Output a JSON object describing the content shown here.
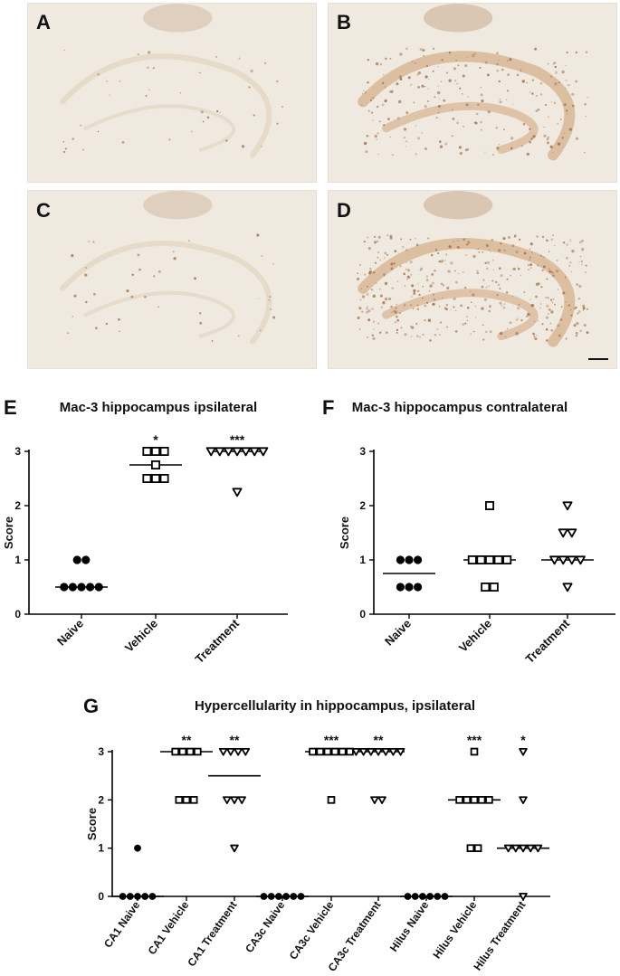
{
  "panel_labels": {
    "A": "A",
    "B": "B",
    "C": "C",
    "D": "D",
    "E": "E",
    "F": "F",
    "G": "G"
  },
  "micrographs": [
    {
      "id": "A",
      "staining": "light"
    },
    {
      "id": "B",
      "staining": "moderate"
    },
    {
      "id": "C",
      "staining": "light"
    },
    {
      "id": "D",
      "staining": "strong"
    }
  ],
  "colors": {
    "tissue_bg": "#efe9df",
    "stain": "#a06a42",
    "layer": "#e4d8c6",
    "axis": "#000000"
  },
  "chart_data": [
    {
      "id": "E",
      "type": "scatter",
      "title": "Mac-3 hippocampus ipsilateral",
      "ylabel": "Score",
      "ylim": [
        0,
        3
      ],
      "yticks": [
        "0",
        "1",
        "2",
        "3"
      ],
      "categories": [
        "Naive",
        "Vehicle",
        "Treatment"
      ],
      "markers": [
        "circle",
        "square",
        "triangle-down"
      ],
      "groups": [
        {
          "category": "Naive",
          "values": [
            0.5,
            0.5,
            0.5,
            0.5,
            0.5,
            1,
            1
          ],
          "median": 0.5,
          "significance": ""
        },
        {
          "category": "Vehicle",
          "values": [
            3,
            3,
            3,
            2.75,
            2.5,
            2.5,
            2.5
          ],
          "median": 2.75,
          "significance": "*"
        },
        {
          "category": "Treatment",
          "values": [
            3,
            3,
            3,
            3,
            3,
            3,
            3,
            2.25
          ],
          "median": 3,
          "significance": "***"
        }
      ]
    },
    {
      "id": "F",
      "type": "scatter",
      "title": "Mac-3 hippocampus contralateral",
      "ylabel": "Score",
      "ylim": [
        0,
        3
      ],
      "yticks": [
        "0",
        "1",
        "2",
        "3"
      ],
      "categories": [
        "Naive",
        "Vehicle",
        "Treatment"
      ],
      "markers": [
        "circle",
        "square",
        "triangle-down"
      ],
      "groups": [
        {
          "category": "Naive",
          "values": [
            1,
            1,
            1,
            0.5,
            0.5,
            0.5
          ],
          "median": 0.75,
          "significance": ""
        },
        {
          "category": "Vehicle",
          "values": [
            2,
            1,
            1,
            1,
            1,
            1,
            0.5,
            0.5
          ],
          "median": 1,
          "significance": ""
        },
        {
          "category": "Treatment",
          "values": [
            2,
            1.5,
            1.5,
            1,
            1,
            1,
            1,
            0.5
          ],
          "median": 1,
          "significance": ""
        }
      ]
    },
    {
      "id": "G",
      "type": "scatter",
      "title": "Hypercellularity in hippocampus, ipsilateral",
      "ylabel": "Score",
      "ylim": [
        0,
        3
      ],
      "yticks": [
        "0",
        "1",
        "2",
        "3"
      ],
      "categories": [
        "CA1 Naive",
        "CA1 Vehicle",
        "CA1 Treatment",
        "CA3c Naive",
        "CA3c Vehicle",
        "CA3c Treatment",
        "Hilus Naive",
        "Hilus Vehicle",
        "Hilus Treatment"
      ],
      "markers": [
        "circle",
        "square",
        "triangle-down",
        "circle",
        "square",
        "triangle-down",
        "circle",
        "square",
        "triangle-down"
      ],
      "groups": [
        {
          "category": "CA1 Naive",
          "values": [
            1,
            0,
            0,
            0,
            0,
            0
          ],
          "median": 0,
          "significance": ""
        },
        {
          "category": "CA1 Vehicle",
          "values": [
            3,
            3,
            3,
            3,
            2,
            2,
            2
          ],
          "median": 3,
          "significance": "**"
        },
        {
          "category": "CA1 Treatment",
          "values": [
            3,
            3,
            3,
            3,
            2,
            2,
            2,
            1
          ],
          "median": 2.5,
          "significance": "**"
        },
        {
          "category": "CA3c Naive",
          "values": [
            0,
            0,
            0,
            0,
            0,
            0
          ],
          "median": 0,
          "significance": ""
        },
        {
          "category": "CA3c Vehicle",
          "values": [
            3,
            3,
            3,
            3,
            3,
            3,
            2
          ],
          "median": 3,
          "significance": "***"
        },
        {
          "category": "CA3c Treatment",
          "values": [
            3,
            3,
            3,
            3,
            3,
            3,
            3,
            2,
            2
          ],
          "median": 3,
          "significance": "**"
        },
        {
          "category": "Hilus Naive",
          "values": [
            0,
            0,
            0,
            0,
            0,
            0
          ],
          "median": 0,
          "significance": ""
        },
        {
          "category": "Hilus Vehicle",
          "values": [
            3,
            2,
            2,
            2,
            2,
            2,
            1,
            1
          ],
          "median": 2,
          "significance": "***"
        },
        {
          "category": "Hilus Treatment",
          "values": [
            3,
            2,
            1,
            1,
            1,
            1,
            1,
            0
          ],
          "median": 1,
          "significance": "*"
        }
      ]
    }
  ]
}
